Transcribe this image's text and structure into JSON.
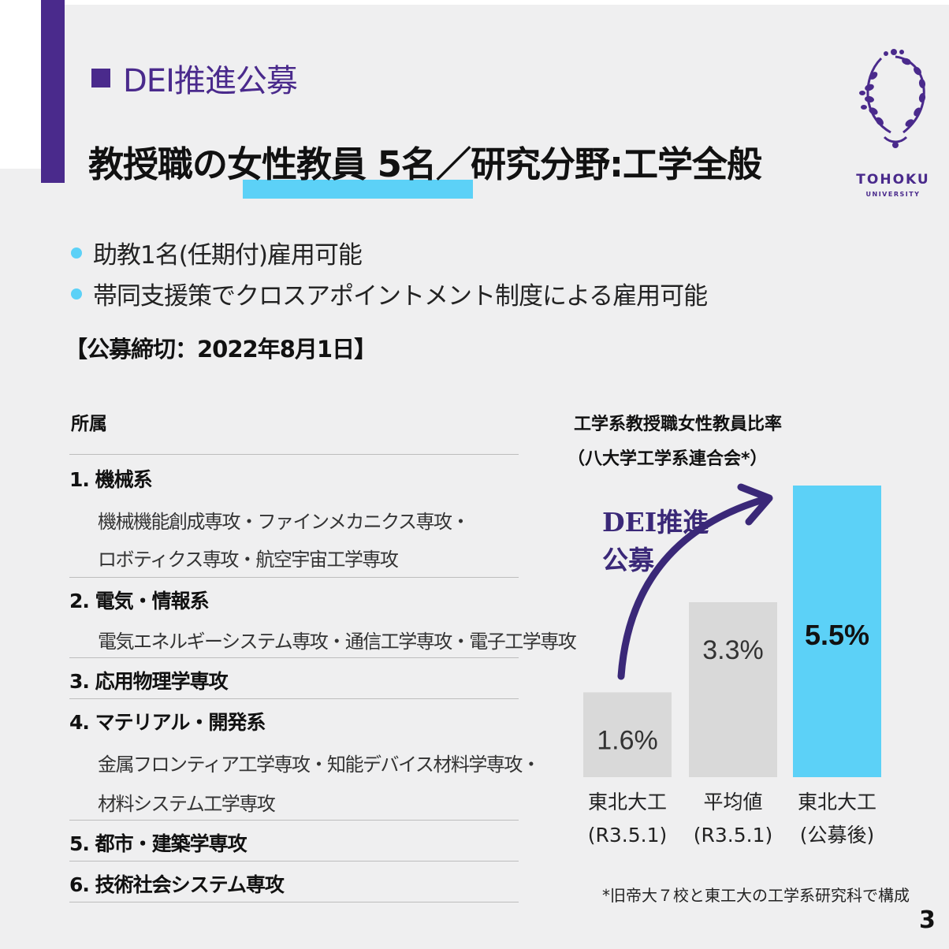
{
  "header": {
    "kicker": "DEI推進公募",
    "headline": "教授職の女性教員 5名／研究分野:工学全般"
  },
  "logo": {
    "name": "TOHOKU",
    "sub": "UNIVERSITY",
    "color": "#4a2a8c"
  },
  "bullets": [
    "助教1名(任期付)雇用可能",
    "帯同支援策でクロスアポイントメント制度による雇用可能"
  ],
  "deadline": "【公募締切：2022年8月1日】",
  "affiliation": {
    "title": "所属",
    "items": [
      {
        "label": "1. 機械系",
        "subs": [
          "機械機能創成専攻・ファインメカニクス専攻・",
          "ロボティクス専攻・航空宇宙工学専攻"
        ]
      },
      {
        "label": "2. 電気・情報系",
        "subs": [
          "電気エネルギーシステム専攻・通信工学専攻・電子工学専攻"
        ]
      },
      {
        "label": "3. 応用物理学専攻",
        "subs": []
      },
      {
        "label": "4. マテリアル・開発系",
        "subs": [
          "金属フロンティア工学専攻・知能デバイス材料学専攻・",
          "材料システム工学専攻"
        ]
      },
      {
        "label": "5. 都市・建築学専攻",
        "subs": []
      },
      {
        "label": "6. 技術社会システム専攻",
        "subs": []
      }
    ]
  },
  "chart": {
    "title_line1": "工学系教授職女性教員比率",
    "title_line2": "（八大学工学系連合会*）",
    "annotation_line1": "DEI推進",
    "annotation_line2": "公募"
  },
  "chart_data": {
    "type": "bar",
    "categories": [
      [
        "東北大工",
        "(R3.5.1)"
      ],
      [
        "平均値",
        "(R3.5.1)"
      ],
      [
        "東北大工",
        "(公募後)"
      ]
    ],
    "values": [
      1.6,
      3.3,
      5.5
    ],
    "value_labels": [
      "1.6%",
      "3.3%",
      "5.5%"
    ],
    "ylim": [
      0,
      5.5
    ],
    "colors": [
      "#d9d9d9",
      "#d9d9d9",
      "#5cd1f7"
    ],
    "highlight_index": 2
  },
  "footnote": "*旧帝大７校と東工大の工学系研究科で構成",
  "page_number": "3",
  "colors": {
    "accent": "#4a2a8c",
    "highlight": "#5cd1f7",
    "panel": "#efeff0",
    "bar_grey": "#d9d9d9"
  }
}
